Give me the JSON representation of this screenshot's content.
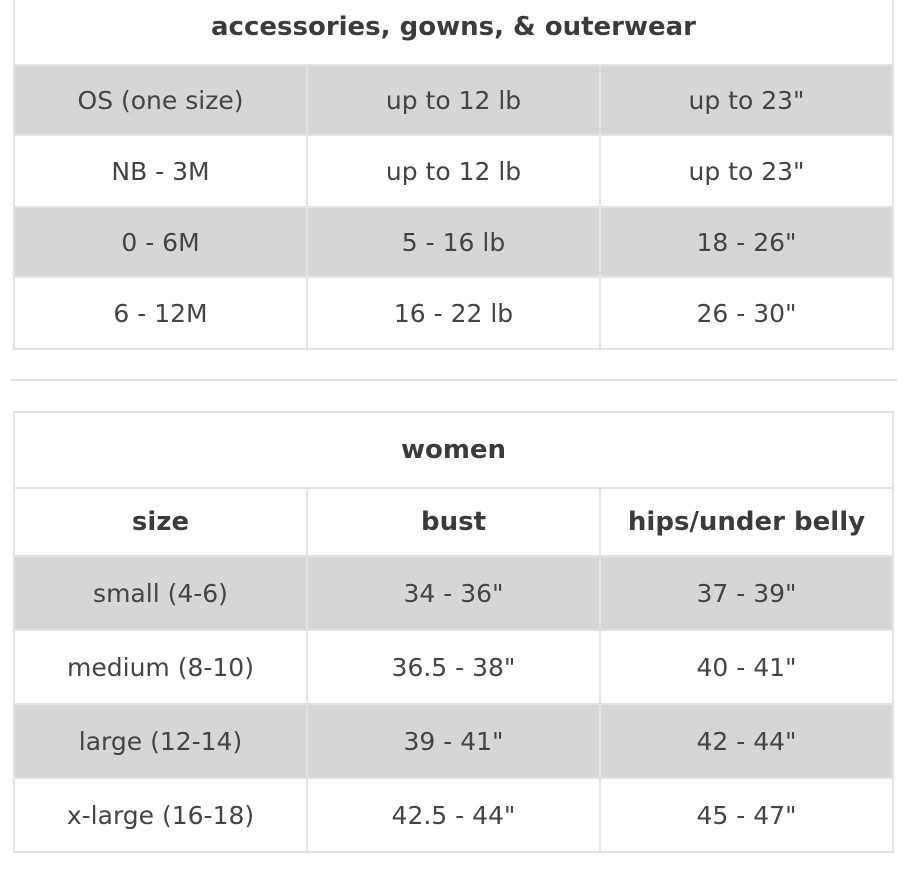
{
  "accessories": {
    "title": "accessories, gowns, & outerwear",
    "rows": [
      {
        "size": "OS (one size)",
        "weight": "up to 12 lb",
        "height": "up to 23\""
      },
      {
        "size": "NB - 3M",
        "weight": "up to 12 lb",
        "height": "up to 23\""
      },
      {
        "size": "0 - 6M",
        "weight": "5 - 16 lb",
        "height": "18 - 26\""
      },
      {
        "size": "6 - 12M",
        "weight": "16 - 22 lb",
        "height": "26 - 30\""
      }
    ]
  },
  "women": {
    "title": "women",
    "headers": {
      "size": "size",
      "bust": "bust",
      "hips": "hips/under belly"
    },
    "rows": [
      {
        "size": "small (4-6)",
        "bust": "34 - 36\"",
        "hips": "37 - 39\""
      },
      {
        "size": "medium (8-10)",
        "bust": "36.5 - 38\"",
        "hips": "40 - 41\""
      },
      {
        "size": "large (12-14)",
        "bust": "39 - 41\"",
        "hips": "42 - 44\""
      },
      {
        "size": "x-large (16-18)",
        "bust": "42.5 - 44\"",
        "hips": "45 - 47\""
      }
    ]
  }
}
